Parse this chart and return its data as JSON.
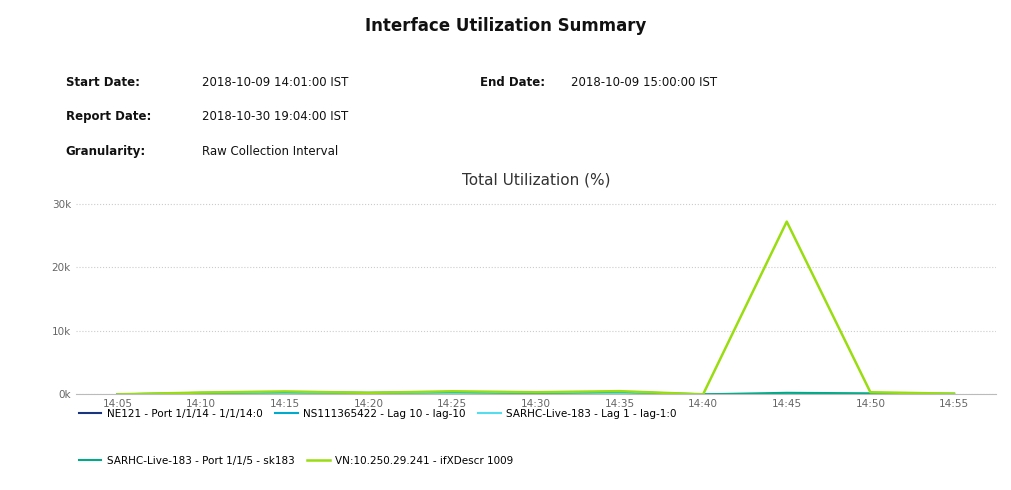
{
  "title": "Interface Utilization Summary",
  "chart_title": "Total Utilization (%)",
  "report_info_left": [
    [
      "Start Date:",
      "2018-10-09 14:01:00 IST"
    ],
    [
      "Report Date:",
      "2018-10-30 19:04:00 IST"
    ],
    [
      "Granularity:",
      "Raw Collection Interval"
    ]
  ],
  "report_info_right": [
    [
      "End Date:",
      "2018-10-09 15:00:00 IST"
    ]
  ],
  "bg_color": "#ffffff",
  "x_ticks": [
    "14:05",
    "14:10",
    "14:15",
    "14:20",
    "14:25",
    "14:30",
    "14:35",
    "14:40",
    "14:45",
    "14:50",
    "14:55"
  ],
  "x_values": [
    1,
    2,
    3,
    4,
    5,
    6,
    7,
    8,
    9,
    10,
    11
  ],
  "ylim": [
    0,
    32000
  ],
  "yticks": [
    0,
    10000,
    20000,
    30000
  ],
  "ytick_labels": [
    "0k",
    "10k",
    "20k",
    "30k"
  ],
  "series": [
    {
      "label": "NE121 - Port 1/1/14 - 1/1/14:0",
      "color": "#1a3580",
      "linewidth": 1.5,
      "values": [
        5,
        12,
        8,
        10,
        8,
        10,
        12,
        5,
        8,
        8,
        6
      ]
    },
    {
      "label": "NS111365422 - Lag 10 - lag-10",
      "color": "#00aacc",
      "linewidth": 1.5,
      "values": [
        8,
        18,
        15,
        15,
        18,
        14,
        22,
        8,
        18,
        14,
        10
      ]
    },
    {
      "label": "SARHC-Live-183 - Lag 1 - lag-1:0",
      "color": "#55ddee",
      "linewidth": 1.5,
      "values": [
        10,
        30,
        90,
        30,
        90,
        30,
        90,
        10,
        28,
        25,
        18
      ]
    },
    {
      "label": "SARHC-Live-183 - Port 1/1/5 - sk183",
      "color": "#00aa88",
      "linewidth": 1.5,
      "values": [
        15,
        260,
        380,
        270,
        400,
        250,
        420,
        20,
        260,
        180,
        120
      ]
    },
    {
      "label": "VN:10.250.29.241 - ifXDescr 1009",
      "color": "#99dd11",
      "linewidth": 1.8,
      "values": [
        20,
        300,
        480,
        250,
        500,
        350,
        520,
        20,
        27200,
        350,
        120
      ]
    }
  ],
  "grid_color": "#cccccc",
  "axis_label_color": "#666666",
  "title_fontsize": 12,
  "chart_title_fontsize": 11,
  "info_label_fontsize": 8.5,
  "legend_fontsize": 7.5,
  "tick_fontsize": 7.5
}
